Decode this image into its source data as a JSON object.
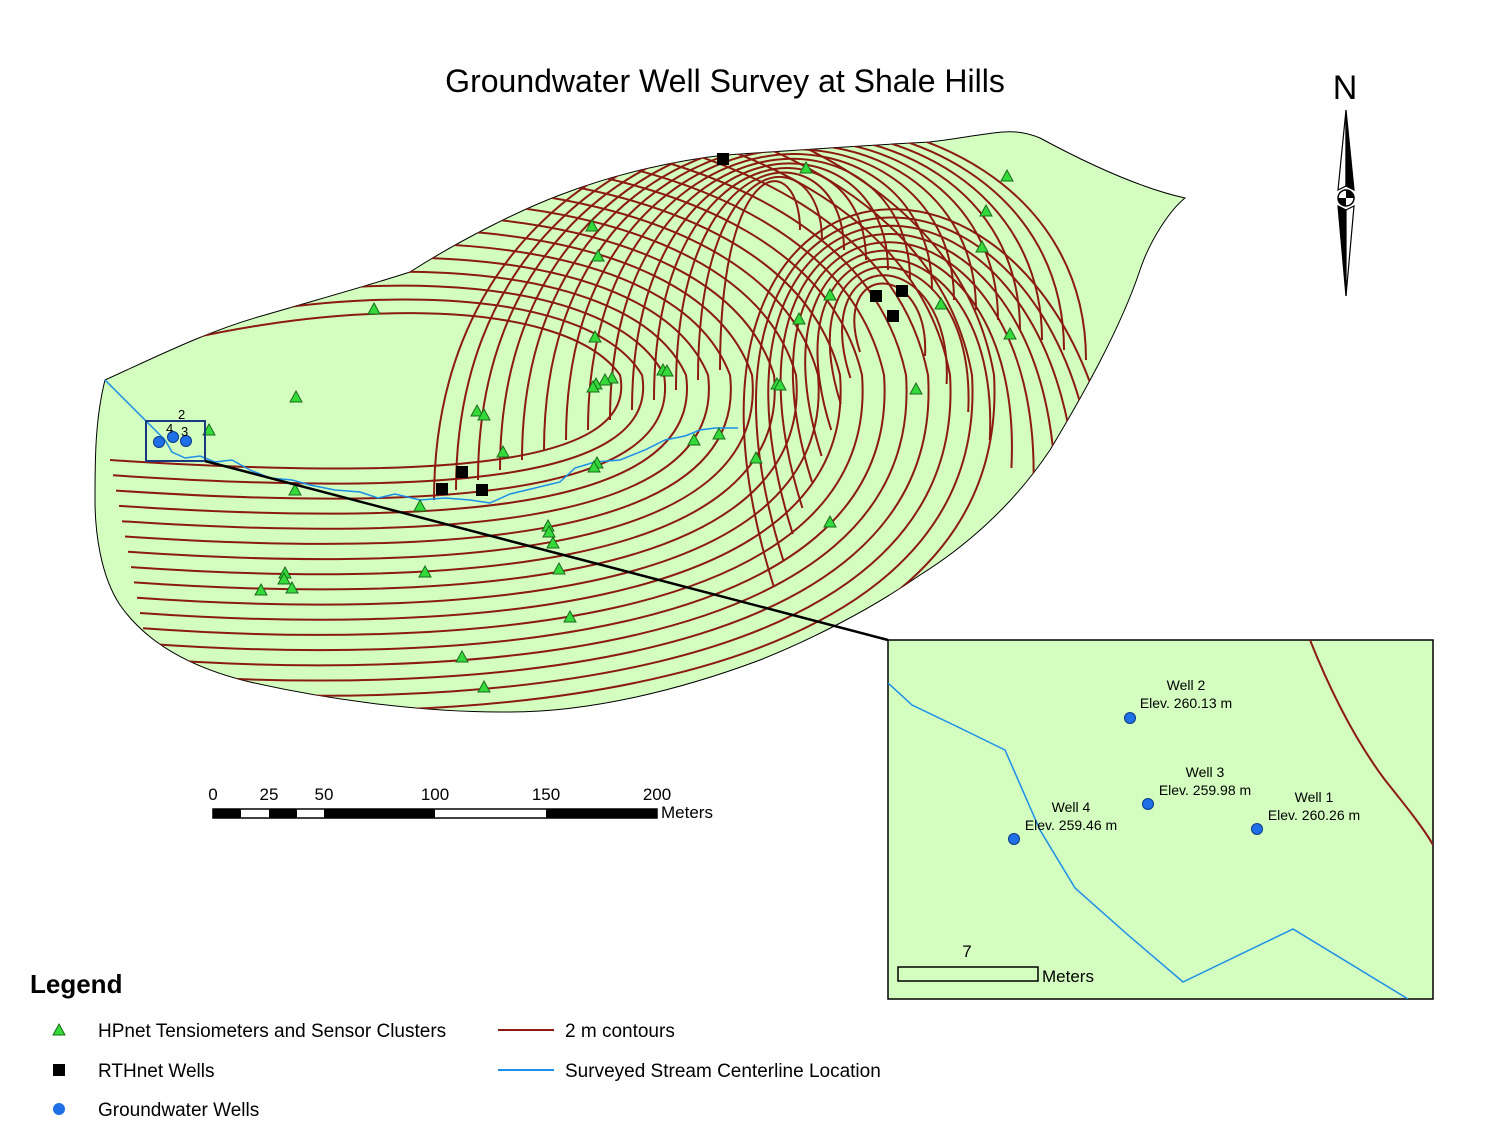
{
  "title": "Groundwater Well Survey at Shale Hills",
  "north_arrow": {
    "letter": "N",
    "icon": "north-arrow-icon"
  },
  "colors": {
    "land": "#d4fec0",
    "contour": "#8b1a12",
    "stream": "#1a8fe8",
    "tensiometer": "#34d93a",
    "rthnet": "#000000",
    "groundwater_well": "#1f6fe6"
  },
  "scale_bar": {
    "tick_labels": [
      "0",
      "25",
      "50",
      "100",
      "150",
      "200"
    ],
    "unit": "Meters"
  },
  "main_map": {
    "well_labels": [
      "2",
      "4",
      "3"
    ]
  },
  "inset": {
    "wells": [
      {
        "name": "Well 2",
        "elevation": "Elev. 260.13 m"
      },
      {
        "name": "Well 3",
        "elevation": "Elev. 259.98 m"
      },
      {
        "name": "Well 4",
        "elevation": "Elev. 259.46 m"
      },
      {
        "name": "Well 1",
        "elevation": "Elev. 260.26 m"
      }
    ],
    "scale_value": "7",
    "scale_unit": "Meters"
  },
  "legend": {
    "title": "Legend",
    "items": [
      {
        "label": "HPnet Tensiometers and Sensor Clusters",
        "symbol": "triangle-icon"
      },
      {
        "label": "RTHnet Wells",
        "symbol": "square-icon"
      },
      {
        "label": "Groundwater Wells",
        "symbol": "circle-icon"
      },
      {
        "label": "2 m contours",
        "symbol": "contour-line-icon"
      },
      {
        "label": "Surveyed Stream Centerline Location",
        "symbol": "stream-line-icon"
      }
    ]
  }
}
